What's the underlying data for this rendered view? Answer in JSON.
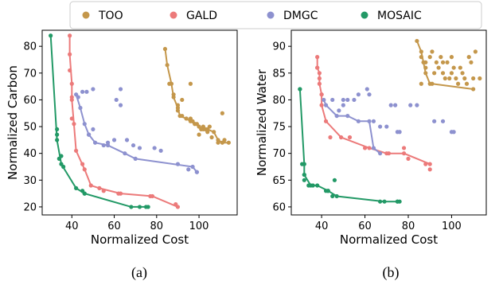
{
  "legend": {
    "entries": [
      {
        "name": "TOO",
        "color": "#c4974b"
      },
      {
        "name": "GALD",
        "color": "#ec7a7a"
      },
      {
        "name": "DMGC",
        "color": "#8d91cf"
      },
      {
        "name": "MOSAIC",
        "color": "#229966"
      }
    ]
  },
  "chart_data": [
    {
      "type": "scatter",
      "caption": "(a)",
      "xlabel": "Normalized Cost",
      "ylabel": "Normalized Carbon",
      "xlim": [
        26,
        118
      ],
      "ylim": [
        17,
        86
      ],
      "xticks": [
        40,
        60,
        80,
        100
      ],
      "yticks": [
        20,
        30,
        40,
        50,
        60,
        70,
        80
      ],
      "grid": false,
      "series": [
        {
          "name": "TOO",
          "color": "#c4974b",
          "points": [
            [
              86,
              66
            ],
            [
              88,
              62
            ],
            [
              90,
              58
            ],
            [
              90,
              56
            ],
            [
              92,
              54
            ],
            [
              94,
              53
            ],
            [
              96,
              53
            ],
            [
              97,
              52
            ],
            [
              98,
              51
            ],
            [
              99,
              51
            ],
            [
              100,
              50
            ],
            [
              101,
              49
            ],
            [
              102,
              50
            ],
            [
              103,
              49
            ],
            [
              104,
              48
            ],
            [
              106,
              46
            ],
            [
              109,
              44
            ],
            [
              111,
              55
            ],
            [
              96,
              66
            ],
            [
              92,
              60
            ],
            [
              100,
              47
            ],
            [
              105,
              50
            ],
            [
              112,
              45
            ]
          ],
          "front": [
            [
              84,
              79
            ],
            [
              85,
              73
            ],
            [
              87,
              66
            ],
            [
              88,
              61
            ],
            [
              90,
              57
            ],
            [
              91,
              54
            ],
            [
              94,
              53
            ],
            [
              96,
              52
            ],
            [
              98,
              51
            ],
            [
              100,
              50
            ],
            [
              102,
              49
            ],
            [
              104,
              49
            ],
            [
              107,
              48
            ],
            [
              109,
              45
            ],
            [
              111,
              44
            ],
            [
              114,
              44
            ]
          ]
        },
        {
          "name": "GALD",
          "color": "#ec7a7a",
          "points": [
            [
              39,
              71
            ],
            [
              40,
              61
            ],
            [
              40,
              53
            ],
            [
              45,
              36
            ],
            [
              55,
              26
            ],
            [
              62,
              25
            ],
            [
              77,
              24
            ],
            [
              89,
              21
            ]
          ],
          "front": [
            [
              39,
              84
            ],
            [
              39,
              77
            ],
            [
              40,
              66
            ],
            [
              40,
              60
            ],
            [
              41,
              51
            ],
            [
              42,
              41
            ],
            [
              46,
              34
            ],
            [
              49,
              28
            ],
            [
              53,
              27
            ],
            [
              63,
              25
            ],
            [
              78,
              24
            ],
            [
              90,
              20
            ]
          ]
        },
        {
          "name": "DMGC",
          "color": "#8d91cf",
          "points": [
            [
              43,
              61
            ],
            [
              45,
              63
            ],
            [
              47,
              63
            ],
            [
              50,
              64
            ],
            [
              57,
              44
            ],
            [
              61,
              60
            ],
            [
              63,
              64
            ],
            [
              63,
              58
            ],
            [
              66,
              45
            ],
            [
              69,
              43
            ],
            [
              72,
              42
            ],
            [
              79,
              42
            ],
            [
              82,
              41
            ],
            [
              48,
              47
            ],
            [
              50,
              49
            ],
            [
              90,
              36
            ],
            [
              95,
              34
            ],
            [
              99,
              33
            ],
            [
              55,
              43
            ],
            [
              60,
              45
            ]
          ],
          "front": [
            [
              42,
              62
            ],
            [
              44,
              57
            ],
            [
              46,
              51
            ],
            [
              48,
              47
            ],
            [
              51,
              44
            ],
            [
              57,
              43
            ],
            [
              65,
              40
            ],
            [
              70,
              38
            ],
            [
              97,
              35
            ],
            [
              99,
              33
            ]
          ]
        },
        {
          "name": "MOSAIC",
          "color": "#229966",
          "points": [
            [
              33,
              49
            ],
            [
              33,
              47
            ],
            [
              35,
              39
            ],
            [
              34,
              38
            ],
            [
              36,
              35
            ],
            [
              45,
              26
            ],
            [
              46,
              25
            ],
            [
              72,
              20
            ],
            [
              75,
              20
            ]
          ],
          "front": [
            [
              30,
              84
            ],
            [
              33,
              45
            ],
            [
              35,
              36
            ],
            [
              42,
              27
            ],
            [
              46,
              25
            ],
            [
              68,
              20
            ],
            [
              76,
              20
            ]
          ]
        }
      ]
    },
    {
      "type": "scatter",
      "caption": "(b)",
      "xlabel": "Normalized Cost",
      "ylabel": "Normalized Water",
      "xlim": [
        26,
        116
      ],
      "ylim": [
        58.5,
        93
      ],
      "xticks": [
        40,
        60,
        80,
        100
      ],
      "yticks": [
        60,
        65,
        70,
        75,
        80,
        85,
        90
      ],
      "grid": false,
      "series": [
        {
          "name": "TOO",
          "color": "#c4974b",
          "points": [
            [
              86,
              88
            ],
            [
              88,
              87
            ],
            [
              90,
              88
            ],
            [
              91,
              89
            ],
            [
              93,
              87
            ],
            [
              94,
              86
            ],
            [
              95,
              88
            ],
            [
              96,
              85
            ],
            [
              97,
              84
            ],
            [
              98,
              87
            ],
            [
              99,
              84
            ],
            [
              100,
              85
            ],
            [
              101,
              86
            ],
            [
              102,
              84
            ],
            [
              103,
              83
            ],
            [
              104,
              86
            ],
            [
              105,
              85
            ],
            [
              106,
              84
            ],
            [
              107,
              83
            ],
            [
              108,
              88
            ],
            [
              109,
              87
            ],
            [
              110,
              84
            ],
            [
              111,
              89
            ],
            [
              113,
              84
            ],
            [
              86,
              83
            ],
            [
              88,
              86
            ],
            [
              92,
              85
            ],
            [
              96,
              87
            ],
            [
              100,
              88
            ]
          ],
          "front": [
            [
              84,
              91
            ],
            [
              86,
              89
            ],
            [
              87,
              87
            ],
            [
              88,
              85
            ],
            [
              90,
              83
            ],
            [
              91,
              83
            ],
            [
              110,
              82
            ]
          ]
        },
        {
          "name": "GALD",
          "color": "#ec7a7a",
          "points": [
            [
              38,
              86
            ],
            [
              39,
              84
            ],
            [
              40,
              81
            ],
            [
              44,
              73
            ],
            [
              53,
              73
            ],
            [
              60,
              71
            ],
            [
              71,
              70
            ],
            [
              78,
              71
            ],
            [
              80,
              69
            ],
            [
              88,
              68
            ],
            [
              90,
              67
            ]
          ],
          "front": [
            [
              38,
              88
            ],
            [
              38,
              86
            ],
            [
              39,
              85
            ],
            [
              39,
              83
            ],
            [
              40,
              81
            ],
            [
              40,
              79
            ],
            [
              42,
              76
            ],
            [
              49,
              73
            ],
            [
              62,
              71
            ],
            [
              70,
              70
            ],
            [
              78,
              70
            ],
            [
              90,
              68
            ]
          ]
        },
        {
          "name": "DMGC",
          "color": "#8d91cf",
          "points": [
            [
              45,
              80
            ],
            [
              50,
              80
            ],
            [
              52,
              80
            ],
            [
              55,
              80
            ],
            [
              57,
              81
            ],
            [
              61,
              82
            ],
            [
              62,
              81
            ],
            [
              64,
              76
            ],
            [
              67,
              75
            ],
            [
              70,
              75
            ],
            [
              72,
              79
            ],
            [
              74,
              79
            ],
            [
              75,
              74
            ],
            [
              76,
              74
            ],
            [
              81,
              79
            ],
            [
              84,
              79
            ],
            [
              92,
              76
            ],
            [
              96,
              76
            ],
            [
              100,
              74
            ],
            [
              101,
              74
            ],
            [
              50,
              79
            ],
            [
              48,
              78
            ]
          ],
          "front": [
            [
              41,
              80
            ],
            [
              42,
              79
            ],
            [
              47,
              77
            ],
            [
              52,
              77
            ],
            [
              57,
              76
            ],
            [
              62,
              76
            ],
            [
              64,
              71
            ],
            [
              67,
              70
            ]
          ]
        },
        {
          "name": "MOSAIC",
          "color": "#229966",
          "points": [
            [
              30,
              82
            ],
            [
              31,
              68
            ],
            [
              32,
              66
            ],
            [
              32,
              65
            ],
            [
              34,
              64
            ],
            [
              36,
              64
            ],
            [
              42,
              63
            ],
            [
              43,
              63
            ],
            [
              45,
              62
            ],
            [
              46,
              65
            ],
            [
              67,
              61
            ],
            [
              75,
              61
            ]
          ],
          "front": [
            [
              30,
              82
            ],
            [
              32,
              68
            ],
            [
              32,
              66
            ],
            [
              35,
              64
            ],
            [
              38,
              64
            ],
            [
              43,
              63
            ],
            [
              47,
              62
            ],
            [
              69,
              61
            ],
            [
              75,
              61
            ],
            [
              76,
              61
            ]
          ]
        }
      ]
    }
  ]
}
